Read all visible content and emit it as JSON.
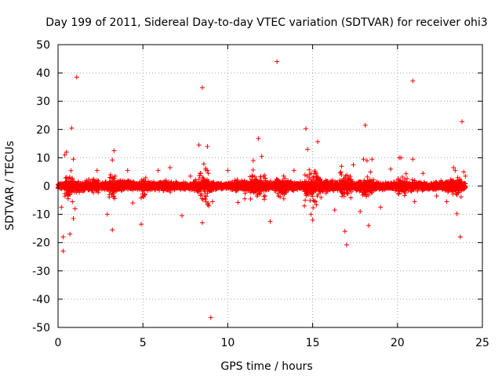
{
  "chart_data": {
    "type": "scatter",
    "title": "Day 199 of 2011, Sidereal Day-to-day VTEC variation (SDTVAR) for receiver ohi3",
    "xlabel": "GPS time / hours",
    "ylabel": "SDTVAR / TECUs",
    "xlim": [
      0,
      25
    ],
    "ylim": [
      -50,
      50
    ],
    "xticks": [
      0,
      5,
      10,
      15,
      20,
      25
    ],
    "yticks": [
      -50,
      -40,
      -30,
      -20,
      -10,
      0,
      10,
      20,
      30,
      40,
      50
    ],
    "grid": true,
    "legend": "none",
    "marker": "+",
    "series": [
      {
        "name": "SDTVAR",
        "color": "#ff0000",
        "outliers": [
          [
            1.1,
            38.5
          ],
          [
            0.8,
            20.5
          ],
          [
            0.3,
            -23
          ],
          [
            0.3,
            -18
          ],
          [
            0.7,
            -17
          ],
          [
            3.2,
            -15.5
          ],
          [
            4.9,
            -13.5
          ],
          [
            8.5,
            34.8
          ],
          [
            9.0,
            -46.5
          ],
          [
            8.5,
            -13
          ],
          [
            11.8,
            16.8
          ],
          [
            12.0,
            10.5
          ],
          [
            12.9,
            44
          ],
          [
            14.6,
            20.3
          ],
          [
            15.3,
            15.7
          ],
          [
            16.9,
            -16
          ],
          [
            17.0,
            -20.8
          ],
          [
            18.1,
            21.5
          ],
          [
            18.3,
            -14
          ],
          [
            20.9,
            37.2
          ],
          [
            23.8,
            22.8
          ],
          [
            23.7,
            -18
          ],
          [
            22.3,
            -3.5
          ],
          [
            20.9,
            9.5
          ],
          [
            21.0,
            -5.5
          ],
          [
            15.0,
            -12
          ],
          [
            14.9,
            -10
          ],
          [
            14.7,
            13
          ],
          [
            12.5,
            -12.5
          ],
          [
            12.2,
            -3.5
          ],
          [
            3.3,
            12.5
          ],
          [
            3.2,
            9.2
          ],
          [
            2.9,
            -10
          ],
          [
            0.5,
            12
          ],
          [
            0.4,
            11
          ],
          [
            0.9,
            9.5
          ],
          [
            0.9,
            -11.5
          ],
          [
            1.0,
            -8
          ],
          [
            8.3,
            14.5
          ],
          [
            8.8,
            14
          ],
          [
            9.1,
            -5.5
          ],
          [
            10.0,
            5.5
          ],
          [
            10.6,
            -5.8
          ],
          [
            13.9,
            5.5
          ],
          [
            16.3,
            -8.5
          ],
          [
            16.7,
            7
          ],
          [
            17.4,
            7.5
          ],
          [
            18.0,
            9.5
          ],
          [
            18.2,
            9.0
          ],
          [
            18.5,
            9.5
          ],
          [
            19.6,
            6
          ],
          [
            20.1,
            10
          ],
          [
            20.2,
            10
          ],
          [
            23.3,
            6.5
          ],
          [
            23.4,
            5.5
          ],
          [
            23.9,
            5
          ],
          [
            24.0,
            3.5
          ],
          [
            2.3,
            5.5
          ],
          [
            5.9,
            5.5
          ],
          [
            6.6,
            6.5
          ],
          [
            7.3,
            -10.5
          ],
          [
            7.8,
            3.5
          ],
          [
            11.5,
            9
          ],
          [
            11.0,
            -4.5
          ],
          [
            4.4,
            -6
          ],
          [
            4.1,
            5.5
          ],
          [
            0.2,
            -7.5
          ],
          [
            0.6,
            -4.5
          ],
          [
            13.3,
            -4.5
          ],
          [
            17.8,
            -9
          ],
          [
            19.0,
            -7.5
          ],
          [
            21.5,
            4.5
          ],
          [
            22.9,
            -5.5
          ],
          [
            23.5,
            -9.8
          ]
        ],
        "bursts": [
          [
            0.4,
            0.9,
            8
          ],
          [
            1.8,
            2.4,
            4
          ],
          [
            3.0,
            3.4,
            7
          ],
          [
            4.9,
            5.2,
            6
          ],
          [
            8.3,
            8.9,
            10
          ],
          [
            11.3,
            12.3,
            6
          ],
          [
            12.8,
            13.5,
            5
          ],
          [
            14.5,
            15.5,
            9
          ],
          [
            16.6,
            17.3,
            6
          ],
          [
            17.9,
            18.6,
            5
          ],
          [
            20.0,
            20.6,
            5
          ],
          [
            23.0,
            23.8,
            4
          ]
        ]
      }
    ]
  }
}
